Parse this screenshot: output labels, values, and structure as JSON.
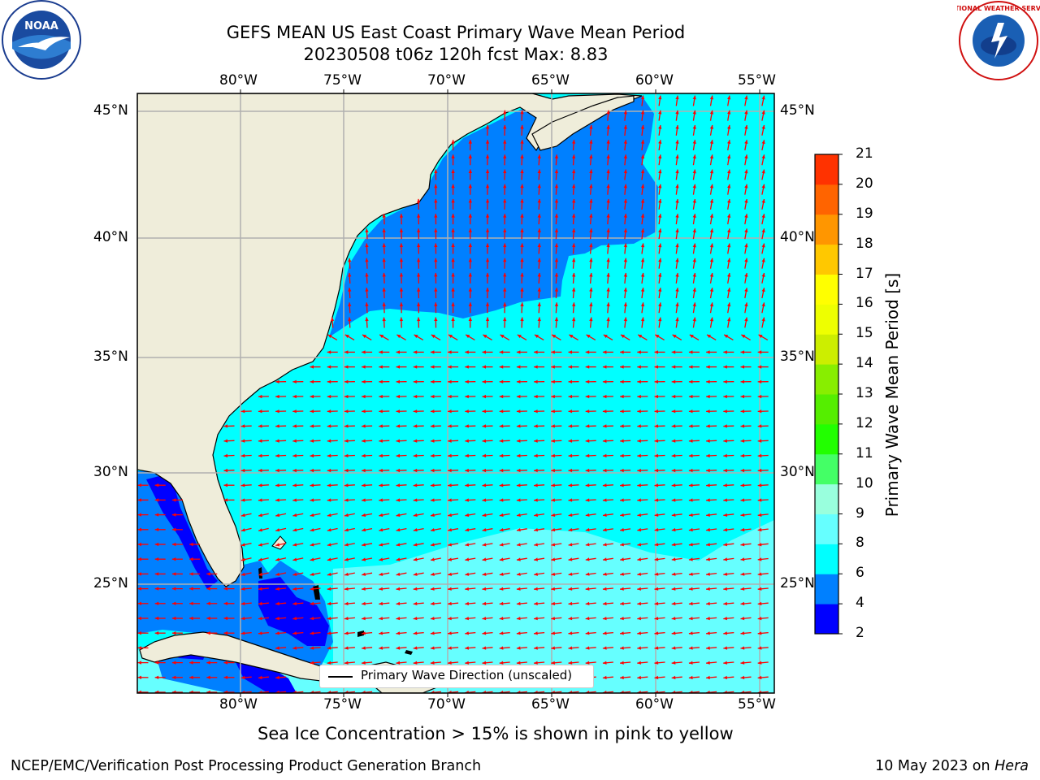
{
  "title_line1": "GEFS MEAN US East Coast Primary Wave Mean Period",
  "title_line2": "20230508 t06z 120h fcst   Max: 8.83",
  "lon_ticks": [
    "80°W",
    "75°W",
    "70°W",
    "65°W",
    "60°W",
    "55°W"
  ],
  "lat_ticks": [
    "45°N",
    "40°N",
    "35°N",
    "30°N",
    "25°N"
  ],
  "legend_label": "Primary Wave Direction (unscaled)",
  "colorbar": {
    "label": "Primary Wave Mean Period [s]",
    "ticks": [
      "2",
      "4",
      "6",
      "8",
      "9",
      "10",
      "11",
      "12",
      "13",
      "14",
      "15",
      "16",
      "17",
      "18",
      "19",
      "20",
      "21"
    ],
    "colors": [
      "#0000ff",
      "#0080ff",
      "#00ffff",
      "#66ffff",
      "#99ffdd",
      "#44ff66",
      "#22ff00",
      "#55ee00",
      "#88ee00",
      "#ccee00",
      "#eeff00",
      "#ffff00",
      "#ffc800",
      "#ff9600",
      "#ff6400",
      "#ff3200",
      "#ff0000"
    ]
  },
  "note": "Sea Ice Concentration > 15% is shown in pink to yellow",
  "footer_left": "NCEP/EMC/Verification Post Processing Product Generation Branch",
  "footer_right_prefix": "10 May 2023 on ",
  "footer_right_host": "Hera",
  "logos": {
    "left": "NOAA",
    "right": "NATIONAL WEATHER SERVICE"
  },
  "colors": {
    "land": "#efedda",
    "period_2_4": "#0000ff",
    "period_4_6": "#0080ff",
    "period_6_8": "#00ffff",
    "period_8_9": "#66ffff",
    "arrow": "#ff0000",
    "grid": "#b0b0b0"
  }
}
